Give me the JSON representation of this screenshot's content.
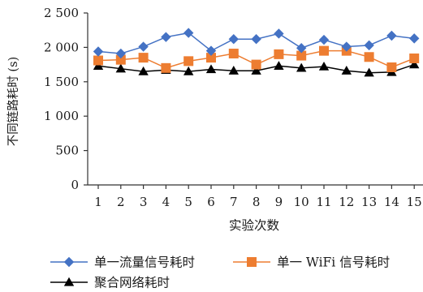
{
  "chart_data": {
    "type": "line",
    "xlabel": "实验次数",
    "ylabel": "不同链路耗时 (s)",
    "x": [
      1,
      2,
      3,
      4,
      5,
      6,
      7,
      8,
      9,
      10,
      11,
      12,
      13,
      14,
      15
    ],
    "ylim": [
      0,
      2500
    ],
    "yticks": [
      0,
      500,
      1000,
      1500,
      2000,
      2500
    ],
    "ytick_labels": [
      "0",
      "500",
      "1 000",
      "1 500",
      "2 000",
      "2 500"
    ],
    "grid": false,
    "legend_position": "bottom",
    "series": [
      {
        "name": "单一流量信号耗时",
        "color": "#4472C4",
        "marker": "diamond",
        "values": [
          1940,
          1910,
          2010,
          2150,
          2210,
          1950,
          2120,
          2120,
          2200,
          1990,
          2110,
          2010,
          2030,
          2170,
          2130
        ]
      },
      {
        "name": "单一 WiFi 信号耗时",
        "color": "#ED7D31",
        "marker": "square",
        "values": [
          1810,
          1820,
          1850,
          1700,
          1800,
          1850,
          1910,
          1750,
          1900,
          1880,
          1950,
          1950,
          1860,
          1710,
          1840
        ]
      },
      {
        "name": "聚合网络耗时",
        "color": "#000000",
        "marker": "triangle",
        "values": [
          1730,
          1690,
          1650,
          1670,
          1650,
          1680,
          1660,
          1660,
          1730,
          1700,
          1720,
          1660,
          1630,
          1640,
          1750
        ]
      }
    ]
  }
}
